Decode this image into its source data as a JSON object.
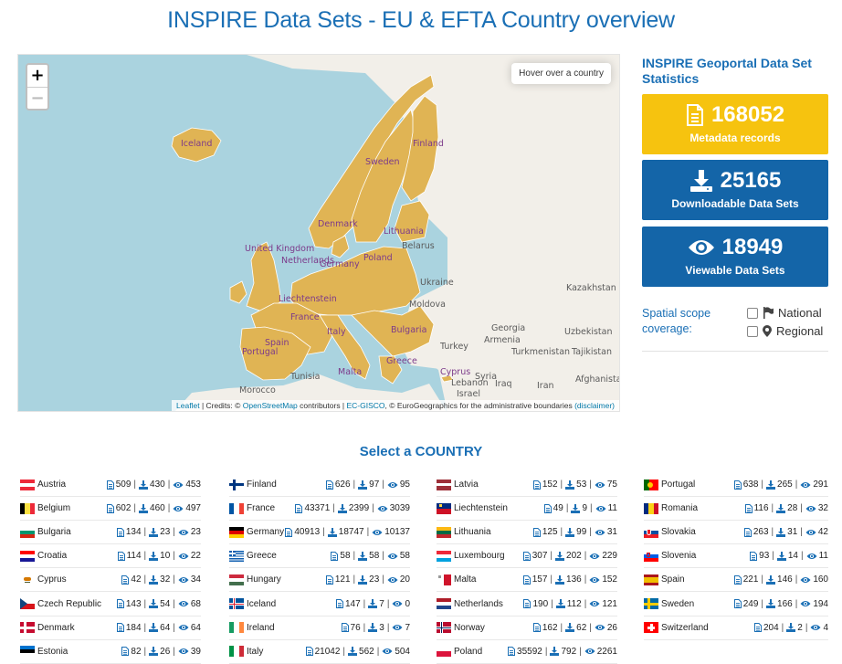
{
  "page_title": "INSPIRE Data Sets - EU & EFTA Country overview",
  "map": {
    "zoom_in": "+",
    "zoom_out": "−",
    "hover_info": "Hover over a country",
    "attribution": {
      "leaflet": "Leaflet",
      "credits": " | Credits: © ",
      "osm": "OpenStreetMap",
      "contributors": " contributors | ",
      "ecgisco": "EC-GISCO",
      "eurogeo": ", © EuroGeographics for the administrative boundaries ",
      "disclaimer": "(disclaimer)"
    },
    "labels": [
      "Iceland",
      "Finland",
      "Sweden",
      "Denmark",
      "Lithuania",
      "Belarus",
      "United Kingdom",
      "Netherlands",
      "Germany",
      "Poland",
      "Ukraine",
      "Kazakhstan",
      "Liechtenstein",
      "Moldova",
      "France",
      "Italy",
      "Bulgaria",
      "Spain",
      "Portugal",
      "Turkey",
      "Georgia",
      "Armenia",
      "Uzbekistan",
      "Turkmenistan",
      "Tajikistan",
      "Tunisia",
      "Malta",
      "Greece",
      "Cyprus",
      "Syria",
      "Iraq",
      "Lebanon",
      "Israel",
      "Iran",
      "Afghanistan",
      "Morocco"
    ]
  },
  "stats": {
    "title": "INSPIRE Geoportal Data Set Statistics",
    "metadata": {
      "value": "168052",
      "label": "Metadata records"
    },
    "downloadable": {
      "value": "25165",
      "label": "Downloadable Data Sets"
    },
    "viewable": {
      "value": "18949",
      "label": "Viewable Data Sets"
    },
    "scope_label": "Spatial scope coverage:",
    "national": "National",
    "regional": "Regional"
  },
  "select_title": "Select a COUNTRY",
  "countries": [
    [
      {
        "name": "Austria",
        "meta": "509",
        "dl": "430",
        "view": "453",
        "flag": "austria"
      },
      {
        "name": "Belgium",
        "meta": "602",
        "dl": "460",
        "view": "497",
        "flag": "belgium"
      },
      {
        "name": "Bulgaria",
        "meta": "134",
        "dl": "23",
        "view": "23",
        "flag": "bulgaria"
      },
      {
        "name": "Croatia",
        "meta": "114",
        "dl": "10",
        "view": "22",
        "flag": "croatia"
      },
      {
        "name": "Cyprus",
        "meta": "42",
        "dl": "32",
        "view": "34",
        "flag": "cyprus"
      },
      {
        "name": "Czech Republic",
        "meta": "143",
        "dl": "54",
        "view": "68",
        "flag": "czech"
      },
      {
        "name": "Denmark",
        "meta": "184",
        "dl": "64",
        "view": "64",
        "flag": "denmark"
      },
      {
        "name": "Estonia",
        "meta": "82",
        "dl": "26",
        "view": "39",
        "flag": "estonia"
      }
    ],
    [
      {
        "name": "Finland",
        "meta": "626",
        "dl": "97",
        "view": "95",
        "flag": "finland"
      },
      {
        "name": "France",
        "meta": "43371",
        "dl": "2399",
        "view": "3039",
        "flag": "france"
      },
      {
        "name": "Germany",
        "meta": "40913",
        "dl": "18747",
        "view": "10137",
        "flag": "germany"
      },
      {
        "name": "Greece",
        "meta": "58",
        "dl": "58",
        "view": "58",
        "flag": "greece"
      },
      {
        "name": "Hungary",
        "meta": "121",
        "dl": "23",
        "view": "20",
        "flag": "hungary"
      },
      {
        "name": "Iceland",
        "meta": "147",
        "dl": "7",
        "view": "0",
        "flag": "iceland"
      },
      {
        "name": "Ireland",
        "meta": "76",
        "dl": "3",
        "view": "7",
        "flag": "ireland"
      },
      {
        "name": "Italy",
        "meta": "21042",
        "dl": "562",
        "view": "504",
        "flag": "italy"
      }
    ],
    [
      {
        "name": "Latvia",
        "meta": "152",
        "dl": "53",
        "view": "75",
        "flag": "latvia"
      },
      {
        "name": "Liechtenstein",
        "meta": "49",
        "dl": "9",
        "view": "11",
        "flag": "liechtenstein"
      },
      {
        "name": "Lithuania",
        "meta": "125",
        "dl": "99",
        "view": "31",
        "flag": "lithuania"
      },
      {
        "name": "Luxembourg",
        "meta": "307",
        "dl": "202",
        "view": "229",
        "flag": "luxembourg"
      },
      {
        "name": "Malta",
        "meta": "157",
        "dl": "136",
        "view": "152",
        "flag": "malta"
      },
      {
        "name": "Netherlands",
        "meta": "190",
        "dl": "112",
        "view": "121",
        "flag": "netherlands"
      },
      {
        "name": "Norway",
        "meta": "162",
        "dl": "62",
        "view": "26",
        "flag": "norway"
      },
      {
        "name": "Poland",
        "meta": "35592",
        "dl": "792",
        "view": "2261",
        "flag": "poland"
      }
    ],
    [
      {
        "name": "Portugal",
        "meta": "638",
        "dl": "265",
        "view": "291",
        "flag": "portugal"
      },
      {
        "name": "Romania",
        "meta": "116",
        "dl": "28",
        "view": "32",
        "flag": "romania"
      },
      {
        "name": "Slovakia",
        "meta": "263",
        "dl": "31",
        "view": "42",
        "flag": "slovakia"
      },
      {
        "name": "Slovenia",
        "meta": "93",
        "dl": "14",
        "view": "11",
        "flag": "slovenia"
      },
      {
        "name": "Spain",
        "meta": "221",
        "dl": "146",
        "view": "160",
        "flag": "spain"
      },
      {
        "name": "Sweden",
        "meta": "249",
        "dl": "166",
        "view": "194",
        "flag": "sweden"
      },
      {
        "name": "Switzerland",
        "meta": "204",
        "dl": "2",
        "view": "4",
        "flag": "switzerland"
      }
    ]
  ],
  "colors": {
    "accent_blue": "#1a6fb5",
    "stat_yellow": "#f6c30f",
    "stat_blue": "#1465a8",
    "eu_fill": "#e0b454",
    "sea": "#aad3df",
    "land": "#f2efe9"
  }
}
